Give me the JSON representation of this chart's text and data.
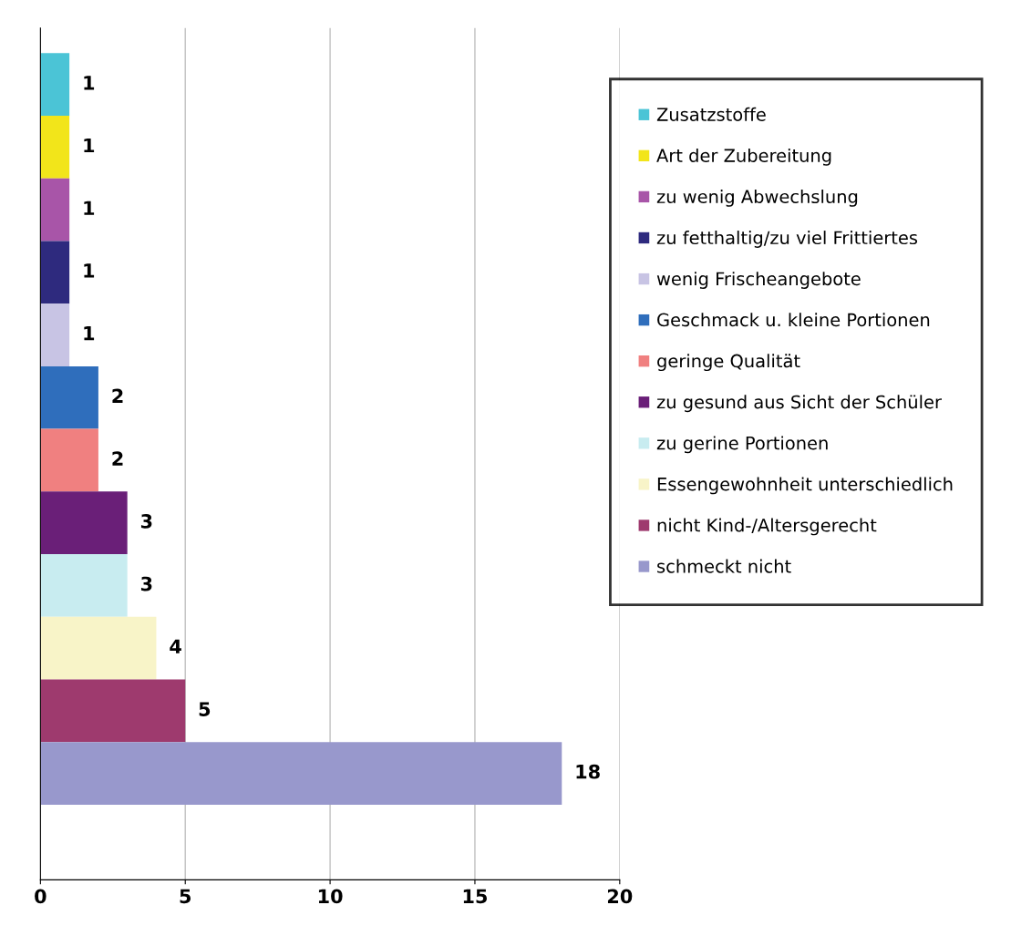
{
  "chart_data": {
    "type": "bar",
    "orientation": "horizontal",
    "categories": [
      null,
      null,
      null,
      null,
      null,
      null,
      null,
      null,
      null,
      null,
      null,
      null
    ],
    "series": [
      {
        "name": "Zusatzstoffe",
        "color": "#4bc4d6",
        "values": [
          1,
          null,
          null,
          null,
          null,
          null,
          null,
          null,
          null,
          null,
          null,
          null
        ]
      },
      {
        "name": "Art der Zubereitung",
        "color": "#f2e51a",
        "values": [
          null,
          1,
          null,
          null,
          null,
          null,
          null,
          null,
          null,
          null,
          null,
          null
        ]
      },
      {
        "name": "zu wenig Abwechslung",
        "color": "#a855a8",
        "values": [
          null,
          null,
          1,
          null,
          null,
          null,
          null,
          null,
          null,
          null,
          null,
          null
        ]
      },
      {
        "name": "zu fetthaltig/zu viel Frittiertes",
        "color": "#2e2a7e",
        "values": [
          null,
          null,
          null,
          1,
          null,
          null,
          null,
          null,
          null,
          null,
          null,
          null
        ]
      },
      {
        "name": "wenig Frischeangebote",
        "color": "#c8c4e4",
        "values": [
          null,
          null,
          null,
          null,
          1,
          null,
          null,
          null,
          null,
          null,
          null,
          null
        ]
      },
      {
        "name": "Geschmack u. kleine Portionen",
        "color": "#2f6ebc",
        "values": [
          null,
          null,
          null,
          null,
          null,
          2,
          null,
          null,
          null,
          null,
          null,
          null
        ]
      },
      {
        "name": "geringe Qualität",
        "color": "#f08080",
        "values": [
          null,
          null,
          null,
          null,
          null,
          null,
          2,
          null,
          null,
          null,
          null,
          null
        ]
      },
      {
        "name": "zu gesund aus Sicht der Schüler",
        "color": "#6a1f78",
        "values": [
          null,
          null,
          null,
          null,
          null,
          null,
          null,
          3,
          null,
          null,
          null,
          null
        ]
      },
      {
        "name": "zu gerine Portionen",
        "color": "#c8ecf0",
        "values": [
          null,
          null,
          null,
          null,
          null,
          null,
          null,
          null,
          3,
          null,
          null,
          null
        ]
      },
      {
        "name": "Essengewohnheit unterschiedlich",
        "color": "#f8f4c8",
        "values": [
          null,
          null,
          null,
          null,
          null,
          null,
          null,
          null,
          null,
          4,
          null,
          null
        ]
      },
      {
        "name": "nicht Kind-/Altersgerecht",
        "color": "#9e3a6e",
        "values": [
          null,
          null,
          null,
          null,
          null,
          null,
          null,
          null,
          null,
          null,
          5,
          null
        ]
      },
      {
        "name": "schmeckt nicht",
        "color": "#9898cc",
        "values": [
          null,
          null,
          null,
          null,
          null,
          null,
          null,
          null,
          null,
          null,
          null,
          18
        ]
      }
    ],
    "xlim": [
      0,
      20
    ],
    "xticks": [
      0,
      5,
      10,
      15,
      20
    ],
    "grid": "x",
    "stacked": true,
    "legend": "right",
    "data_labels": true
  }
}
